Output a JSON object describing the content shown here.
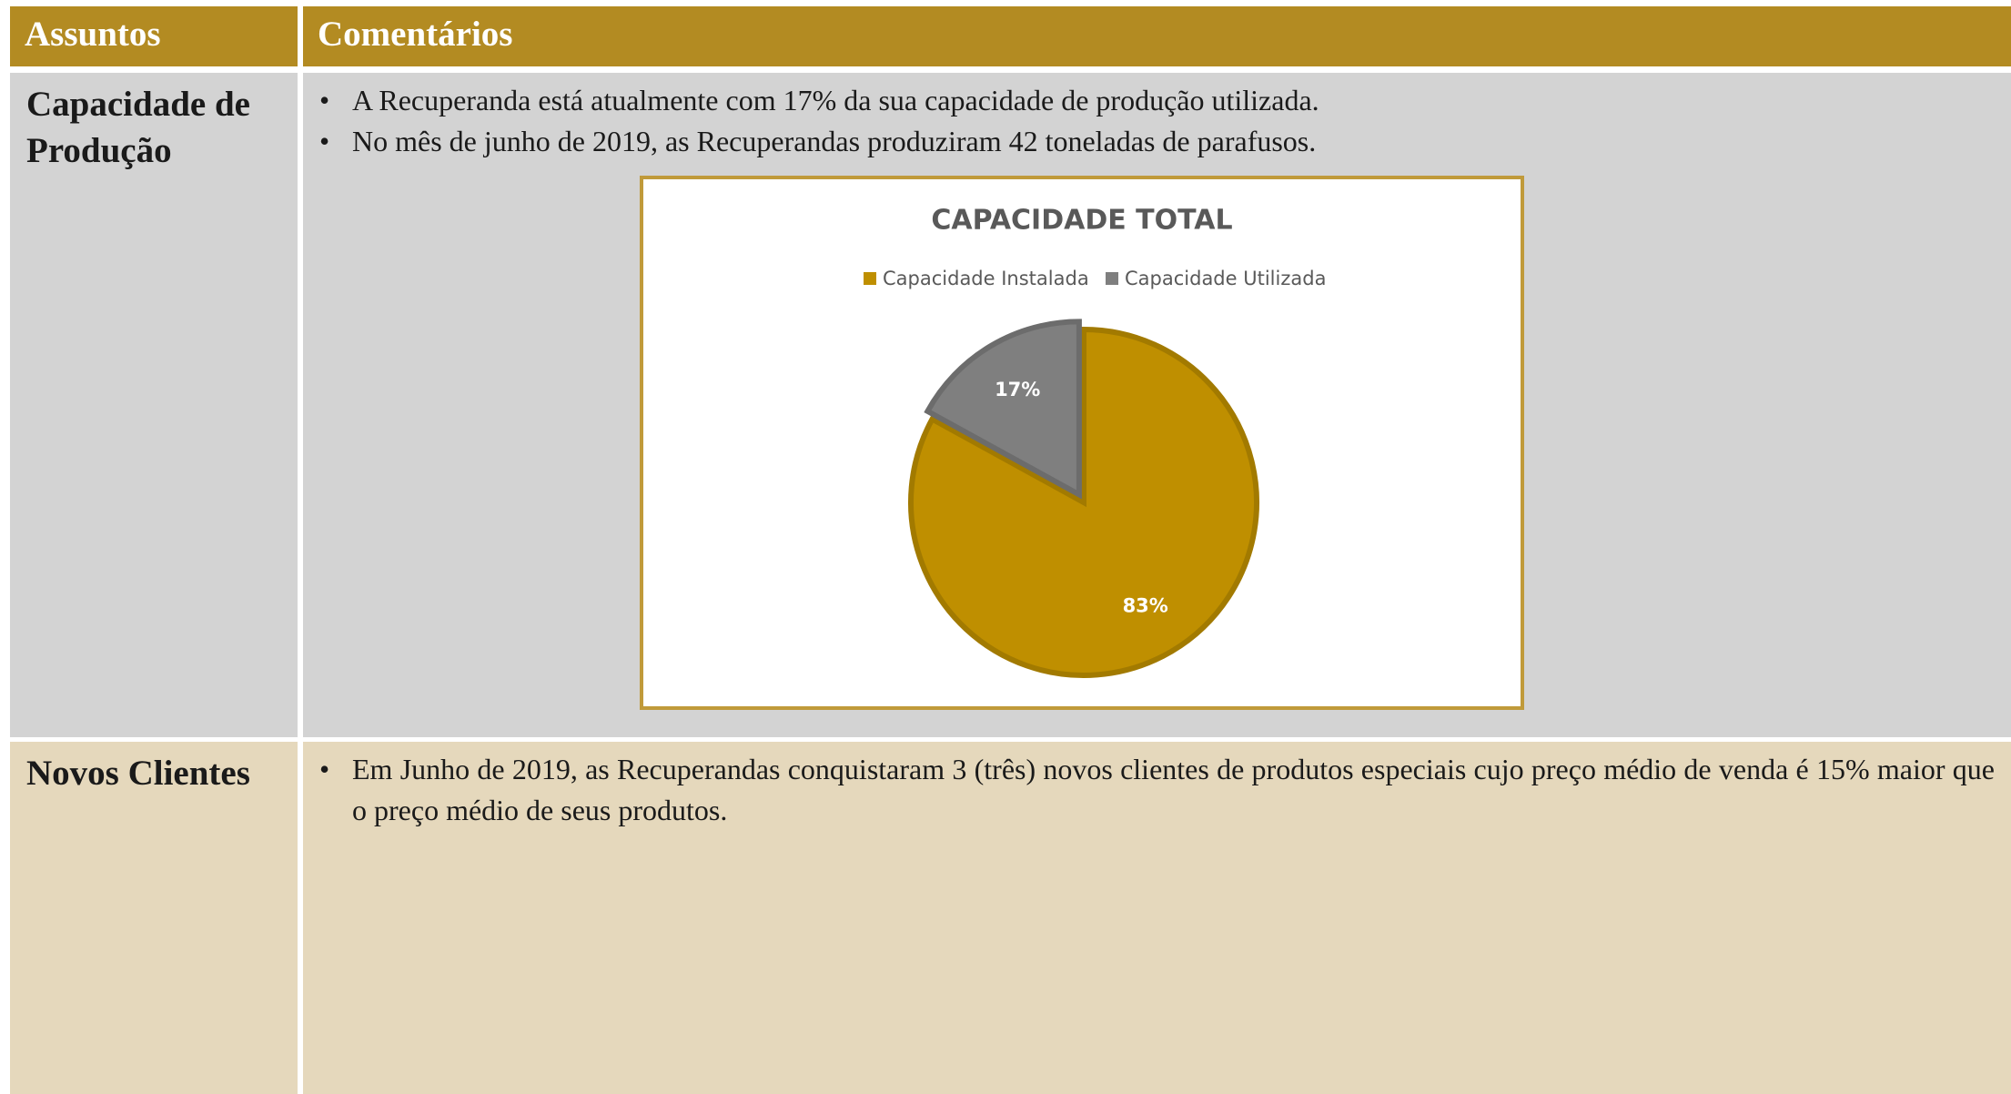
{
  "table": {
    "headers": [
      "Assuntos",
      "Comentários"
    ],
    "rows": [
      {
        "subject": "Capacidade de Produção",
        "bullets": [
          "A Recuperanda está atualmente com 17% da sua capacidade de produção utilizada.",
          "No mês de junho de 2019, as Recuperandas produziram 42 toneladas de parafusos."
        ]
      },
      {
        "subject": "Novos Clientes",
        "bullets": [
          "Em Junho de 2019, as Recuperandas conquistaram 3 (três) novos clientes de produtos especiais cujo preço médio de venda é 15% maior que o preço médio de seus produtos."
        ]
      }
    ]
  },
  "chart_data": {
    "type": "pie",
    "title": "CAPACIDADE TOTAL",
    "categories": [
      "Capacidade Instalada",
      "Capacidade Utilizada"
    ],
    "values": [
      83,
      17
    ],
    "value_labels": [
      "83%",
      "17%"
    ],
    "colors": [
      "#bf8f00",
      "#7f7f7f"
    ]
  }
}
